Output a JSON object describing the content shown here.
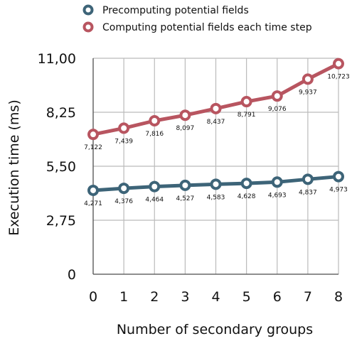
{
  "chart_data": {
    "type": "line",
    "title": "",
    "xlabel": "Number of secondary groups",
    "ylabel": "Execution time (ms)",
    "x": [
      0,
      1,
      2,
      3,
      4,
      5,
      6,
      7,
      8
    ],
    "x_tick_labels": [
      "0",
      "1",
      "2",
      "3",
      "4",
      "5",
      "6",
      "7",
      "8"
    ],
    "ylim": [
      0,
      11
    ],
    "y_ticks": [
      0,
      2.75,
      5.5,
      8.25,
      11
    ],
    "y_tick_labels": [
      "0",
      "2,75",
      "5,50",
      "8,25",
      "11,00"
    ],
    "grid": true,
    "legend_position": "top",
    "series": [
      {
        "name": "Precomputing potential fields",
        "color": "#3d6478",
        "values": [
          4.271,
          4.376,
          4.464,
          4.527,
          4.583,
          4.628,
          4.693,
          4.837,
          4.973
        ],
        "value_labels": [
          "4,271",
          "4,376",
          "4,464",
          "4,527",
          "4,583",
          "4,628",
          "4,693",
          "4,837",
          "4,973"
        ]
      },
      {
        "name": "Computing potential fields each time step",
        "color": "#b85560",
        "values": [
          7.122,
          7.439,
          7.816,
          8.097,
          8.437,
          8.791,
          9.076,
          9.937,
          10.723
        ],
        "value_labels": [
          "7,122",
          "7,439",
          "7,816",
          "8,097",
          "8,437",
          "8,791",
          "9,076",
          "9,937",
          "10,723"
        ]
      }
    ]
  }
}
